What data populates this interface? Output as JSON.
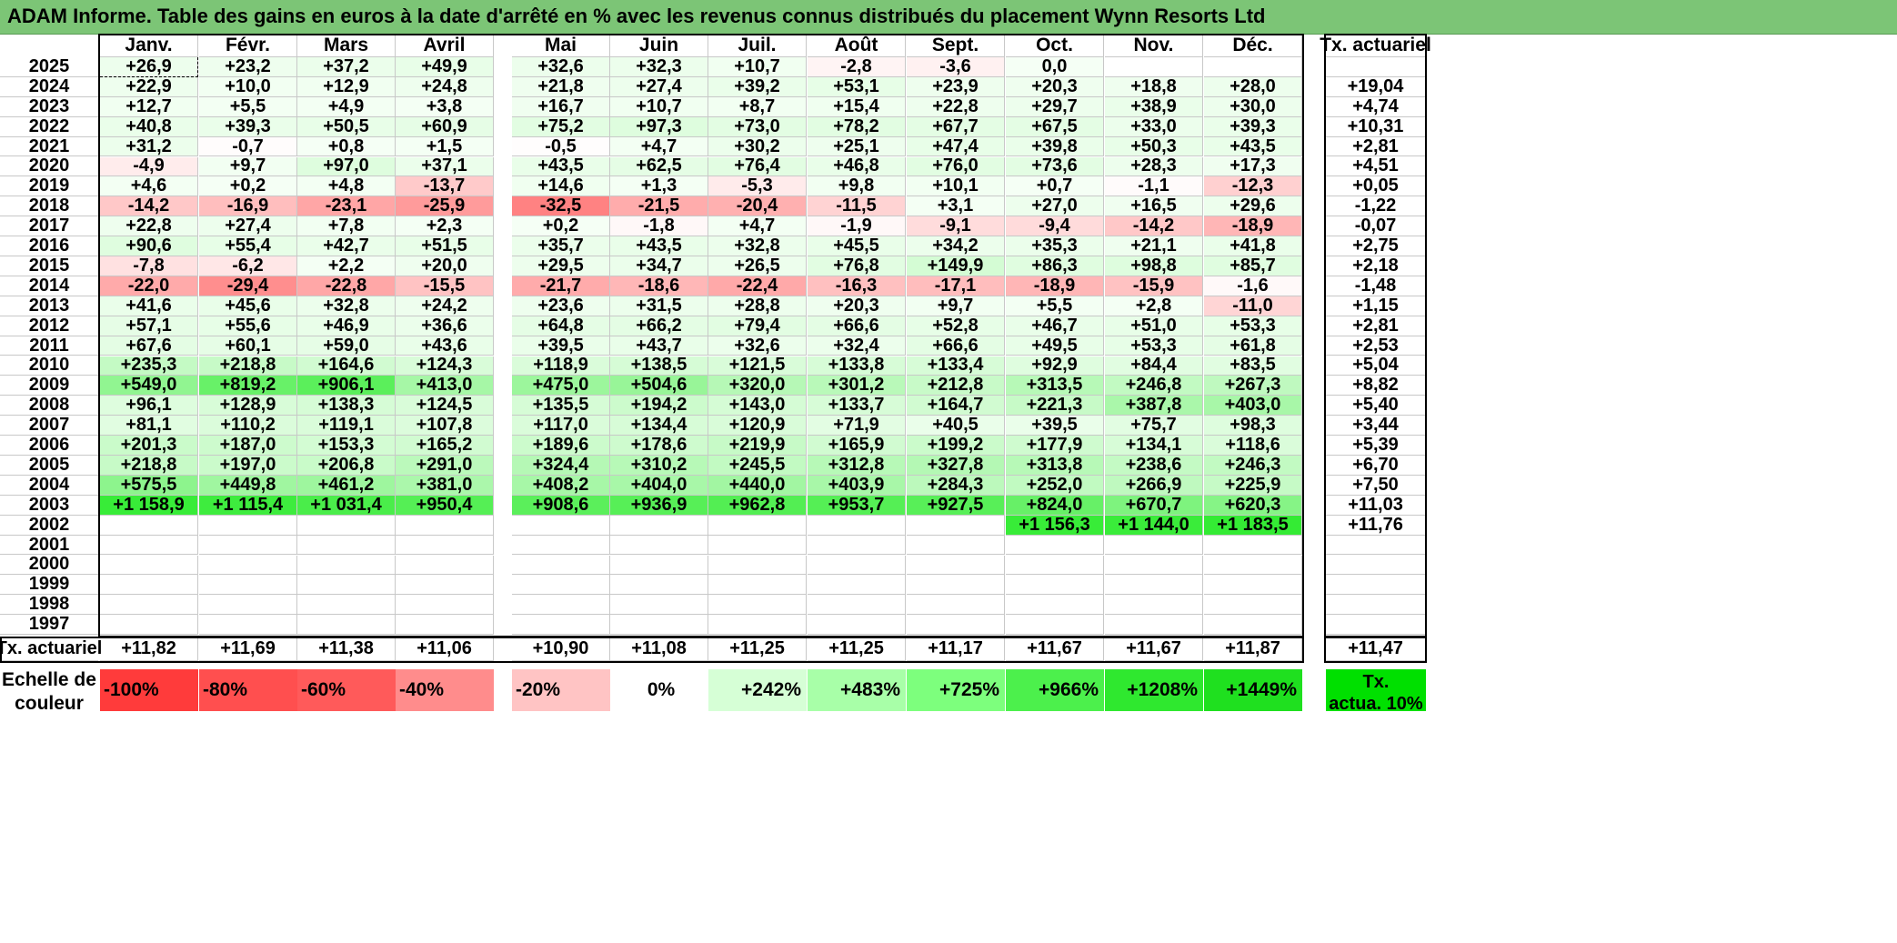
{
  "title": "ADAM Informe. Table des gains en euros à la date d'arrêté en % avec les revenus connus distribués du placement Wynn Resorts Ltd",
  "chart_data": {
    "type": "heatmap",
    "months": [
      "Janv.",
      "Févr.",
      "Mars",
      "Avril",
      "Mai",
      "Juin",
      "Juil.",
      "Août",
      "Sept.",
      "Oct.",
      "Nov.",
      "Déc."
    ],
    "right_header": "Tx. actuariel",
    "rows": [
      {
        "year": "2025",
        "values": [
          "+26,9",
          "+23,2",
          "+37,2",
          "+49,9",
          "+32,6",
          "+32,3",
          "+10,7",
          "-2,8",
          "-3,6",
          "0,0",
          "",
          ""
        ],
        "tx": ""
      },
      {
        "year": "2024",
        "values": [
          "+22,9",
          "+10,0",
          "+12,9",
          "+24,8",
          "+21,8",
          "+27,4",
          "+39,2",
          "+53,1",
          "+23,9",
          "+20,3",
          "+18,8",
          "+28,0"
        ],
        "tx": "+19,04"
      },
      {
        "year": "2023",
        "values": [
          "+12,7",
          "+5,5",
          "+4,9",
          "+3,8",
          "+16,7",
          "+10,7",
          "+8,7",
          "+15,4",
          "+22,8",
          "+29,7",
          "+38,9",
          "+30,0"
        ],
        "tx": "+4,74"
      },
      {
        "year": "2022",
        "values": [
          "+40,8",
          "+39,3",
          "+50,5",
          "+60,9",
          "+75,2",
          "+97,3",
          "+73,0",
          "+78,2",
          "+67,7",
          "+67,5",
          "+33,0",
          "+39,3"
        ],
        "tx": "+10,31"
      },
      {
        "year": "2021",
        "values": [
          "+31,2",
          "-0,7",
          "+0,8",
          "+1,5",
          "-0,5",
          "+4,7",
          "+30,2",
          "+25,1",
          "+47,4",
          "+39,8",
          "+50,3",
          "+43,5"
        ],
        "tx": "+2,81"
      },
      {
        "year": "2020",
        "values": [
          "-4,9",
          "+9,7",
          "+97,0",
          "+37,1",
          "+43,5",
          "+62,5",
          "+76,4",
          "+46,8",
          "+76,0",
          "+73,6",
          "+28,3",
          "+17,3"
        ],
        "tx": "+4,51"
      },
      {
        "year": "2019",
        "values": [
          "+4,6",
          "+0,2",
          "+4,8",
          "-13,7",
          "+14,6",
          "+1,3",
          "-5,3",
          "+9,8",
          "+10,1",
          "+0,7",
          "-1,1",
          "-12,3"
        ],
        "tx": "+0,05"
      },
      {
        "year": "2018",
        "values": [
          "-14,2",
          "-16,9",
          "-23,1",
          "-25,9",
          "-32,5",
          "-21,5",
          "-20,4",
          "-11,5",
          "+3,1",
          "+27,0",
          "+16,5",
          "+29,6"
        ],
        "tx": "-1,22"
      },
      {
        "year": "2017",
        "values": [
          "+22,8",
          "+27,4",
          "+7,8",
          "+2,3",
          "+0,2",
          "-1,8",
          "+4,7",
          "-1,9",
          "-9,1",
          "-9,4",
          "-14,2",
          "-18,9"
        ],
        "tx": "-0,07"
      },
      {
        "year": "2016",
        "values": [
          "+90,6",
          "+55,4",
          "+42,7",
          "+51,5",
          "+35,7",
          "+43,5",
          "+32,8",
          "+45,5",
          "+34,2",
          "+35,3",
          "+21,1",
          "+41,8"
        ],
        "tx": "+2,75"
      },
      {
        "year": "2015",
        "values": [
          "-7,8",
          "-6,2",
          "+2,2",
          "+20,0",
          "+29,5",
          "+34,7",
          "+26,5",
          "+76,8",
          "+149,9",
          "+86,3",
          "+98,8",
          "+85,7"
        ],
        "tx": "+2,18"
      },
      {
        "year": "2014",
        "values": [
          "-22,0",
          "-29,4",
          "-22,8",
          "-15,5",
          "-21,7",
          "-18,6",
          "-22,4",
          "-16,3",
          "-17,1",
          "-18,9",
          "-15,9",
          "-1,6"
        ],
        "tx": "-1,48"
      },
      {
        "year": "2013",
        "values": [
          "+41,6",
          "+45,6",
          "+32,8",
          "+24,2",
          "+23,6",
          "+31,5",
          "+28,8",
          "+20,3",
          "+9,7",
          "+5,5",
          "+2,8",
          "-11,0"
        ],
        "tx": "+1,15"
      },
      {
        "year": "2012",
        "values": [
          "+57,1",
          "+55,6",
          "+46,9",
          "+36,6",
          "+64,8",
          "+66,2",
          "+79,4",
          "+66,6",
          "+52,8",
          "+46,7",
          "+51,0",
          "+53,3"
        ],
        "tx": "+2,81"
      },
      {
        "year": "2011",
        "values": [
          "+67,6",
          "+60,1",
          "+59,0",
          "+43,6",
          "+39,5",
          "+43,7",
          "+32,6",
          "+32,4",
          "+66,6",
          "+49,5",
          "+53,3",
          "+61,8"
        ],
        "tx": "+2,53"
      },
      {
        "year": "2010",
        "values": [
          "+235,3",
          "+218,8",
          "+164,6",
          "+124,3",
          "+118,9",
          "+138,5",
          "+121,5",
          "+133,8",
          "+133,4",
          "+92,9",
          "+84,4",
          "+83,5"
        ],
        "tx": "+5,04"
      },
      {
        "year": "2009",
        "values": [
          "+549,0",
          "+819,2",
          "+906,1",
          "+413,0",
          "+475,0",
          "+504,6",
          "+320,0",
          "+301,2",
          "+212,8",
          "+313,5",
          "+246,8",
          "+267,3"
        ],
        "tx": "+8,82"
      },
      {
        "year": "2008",
        "values": [
          "+96,1",
          "+128,9",
          "+138,3",
          "+124,5",
          "+135,5",
          "+194,2",
          "+143,0",
          "+133,7",
          "+164,7",
          "+221,3",
          "+387,8",
          "+403,0"
        ],
        "tx": "+5,40"
      },
      {
        "year": "2007",
        "values": [
          "+81,1",
          "+110,2",
          "+119,1",
          "+107,8",
          "+117,0",
          "+134,4",
          "+120,9",
          "+71,9",
          "+40,5",
          "+39,5",
          "+75,7",
          "+98,3"
        ],
        "tx": "+3,44"
      },
      {
        "year": "2006",
        "values": [
          "+201,3",
          "+187,0",
          "+153,3",
          "+165,2",
          "+189,6",
          "+178,6",
          "+219,9",
          "+165,9",
          "+199,2",
          "+177,9",
          "+134,1",
          "+118,6"
        ],
        "tx": "+5,39"
      },
      {
        "year": "2005",
        "values": [
          "+218,8",
          "+197,0",
          "+206,8",
          "+291,0",
          "+324,4",
          "+310,2",
          "+245,5",
          "+312,8",
          "+327,8",
          "+313,8",
          "+238,6",
          "+246,3"
        ],
        "tx": "+6,70"
      },
      {
        "year": "2004",
        "values": [
          "+575,5",
          "+449,8",
          "+461,2",
          "+381,0",
          "+408,2",
          "+404,0",
          "+440,0",
          "+403,9",
          "+284,3",
          "+252,0",
          "+266,9",
          "+225,9"
        ],
        "tx": "+7,50"
      },
      {
        "year": "2003",
        "values": [
          "+1 158,9",
          "+1 115,4",
          "+1 031,4",
          "+950,4",
          "+908,6",
          "+936,9",
          "+962,8",
          "+953,7",
          "+927,5",
          "+824,0",
          "+670,7",
          "+620,3"
        ],
        "tx": "+11,03"
      },
      {
        "year": "2002",
        "values": [
          "",
          "",
          "",
          "",
          "",
          "",
          "",
          "",
          "",
          "+1 156,3",
          "+1 144,0",
          "+1 183,5"
        ],
        "tx": "+11,76"
      },
      {
        "year": "2001",
        "values": [
          "",
          "",
          "",
          "",
          "",
          "",
          "",
          "",
          "",
          "",
          "",
          ""
        ],
        "tx": ""
      },
      {
        "year": "2000",
        "values": [
          "",
          "",
          "",
          "",
          "",
          "",
          "",
          "",
          "",
          "",
          "",
          ""
        ],
        "tx": ""
      },
      {
        "year": "1999",
        "values": [
          "",
          "",
          "",
          "",
          "",
          "",
          "",
          "",
          "",
          "",
          "",
          ""
        ],
        "tx": ""
      },
      {
        "year": "1998",
        "values": [
          "",
          "",
          "",
          "",
          "",
          "",
          "",
          "",
          "",
          "",
          "",
          ""
        ],
        "tx": ""
      },
      {
        "year": "1997",
        "values": [
          "",
          "",
          "",
          "",
          "",
          "",
          "",
          "",
          "",
          "",
          "",
          ""
        ],
        "tx": ""
      }
    ],
    "footer": {
      "label": "Tx. actuariel",
      "values": [
        "+11,82",
        "+11,69",
        "+11,38",
        "+11,06",
        "+10,90",
        "+11,08",
        "+11,25",
        "+11,25",
        "+11,17",
        "+11,67",
        "+11,67",
        "+11,87"
      ],
      "tx": "+11,47"
    },
    "legend": {
      "label_line1": "Echelle de",
      "label_line2": "couleur",
      "steps": [
        {
          "label": "-100%",
          "color": "#ff3b3b"
        },
        {
          "label": "-80%",
          "color": "#ff4f4f"
        },
        {
          "label": "-60%",
          "color": "#ff5a5a"
        },
        {
          "label": "-40%",
          "color": "#ff8c8c"
        },
        {
          "label": "-20%",
          "color": "#ffc4c4"
        },
        {
          "label": "0%",
          "color": "#ffffff"
        },
        {
          "label": "+242%",
          "color": "#d6ffd6"
        },
        {
          "label": "+483%",
          "color": "#a8ffa8"
        },
        {
          "label": "+725%",
          "color": "#7dff7d"
        },
        {
          "label": "+966%",
          "color": "#4cf04c"
        },
        {
          "label": "+1208%",
          "color": "#2fe82f"
        },
        {
          "label": "+1449%",
          "color": "#1fe01f"
        }
      ],
      "tx_line1": "Tx.",
      "tx_line2": "actua. 10%",
      "tx_color": "#00e000"
    }
  }
}
